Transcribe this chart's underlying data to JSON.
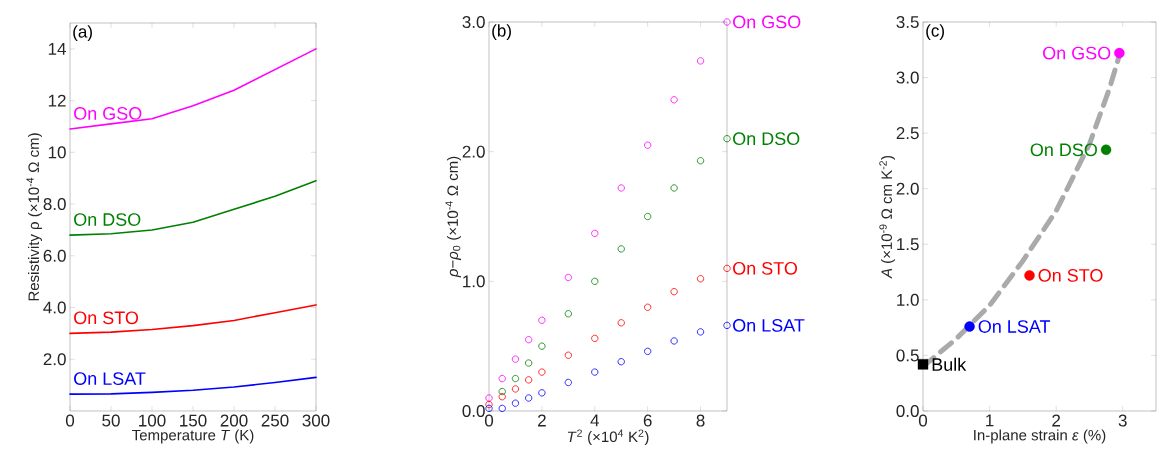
{
  "chart_data": [
    {
      "type": "line",
      "xlabel": "Temperature *T* (K)",
      "ylabel": "Resistivity ρ (×10$^{-4}$ Ω cm)",
      "annotations": [
        "(a)"
      ],
      "x": [
        0,
        50,
        100,
        150,
        200,
        250,
        300
      ],
      "series": [
        {
          "name": "On GSO",
          "color": "#ff00ff",
          "values": [
            10.9,
            11.1,
            11.3,
            11.8,
            12.4,
            13.2,
            14.0
          ]
        },
        {
          "name": "On DSO",
          "color": "#008000",
          "values": [
            6.8,
            6.85,
            7.0,
            7.3,
            7.8,
            8.3,
            8.9
          ]
        },
        {
          "name": "On STO",
          "color": "#ff0000",
          "values": [
            3.0,
            3.05,
            3.15,
            3.3,
            3.5,
            3.8,
            4.1
          ]
        },
        {
          "name": "On LSAT",
          "color": "#0000ff",
          "values": [
            0.65,
            0.66,
            0.72,
            0.8,
            0.93,
            1.1,
            1.3
          ]
        }
      ],
      "xlim": [
        0,
        300
      ],
      "xticks": [
        0,
        50,
        100,
        150,
        200,
        250,
        300
      ],
      "ylim": [
        0,
        15
      ],
      "yticks": [
        {
          "value": 2,
          "label": "2.0"
        },
        {
          "value": 4,
          "label": "4.0"
        },
        {
          "value": 6,
          "label": "6.0"
        },
        {
          "value": 8,
          "label": "8.0"
        },
        10,
        12,
        14
      ]
    },
    {
      "type": "scatter",
      "xlabel": "*T*$^{2}$ (×10$^{4}$ K$^{2}$)",
      "ylabel": "*ρ*−*ρ*$_{0}$ (×10$^{-4}$ Ω cm)",
      "annotations": [
        "(b)"
      ],
      "marker": "circle",
      "x": [
        0,
        0.5,
        1,
        1.5,
        2,
        3,
        4,
        5,
        6,
        7,
        8,
        9
      ],
      "series": [
        {
          "name": "On GSO",
          "color": "#ff00ff",
          "values": [
            0.1,
            0.25,
            0.4,
            0.55,
            0.7,
            1.03,
            1.37,
            1.72,
            2.05,
            2.4,
            2.7,
            3.0
          ]
        },
        {
          "name": "On DSO",
          "color": "#008000",
          "values": [
            null,
            0.15,
            0.25,
            0.37,
            0.5,
            0.75,
            1.0,
            1.25,
            1.5,
            1.72,
            1.93,
            2.1
          ]
        },
        {
          "name": "On STO",
          "color": "#ff0000",
          "values": [
            0.05,
            0.11,
            0.17,
            0.24,
            0.3,
            0.43,
            0.56,
            0.68,
            0.8,
            0.92,
            1.02,
            1.1
          ]
        },
        {
          "name": "On LSAT",
          "color": "#0000ff",
          "values": [
            0.02,
            0.02,
            0.06,
            0.1,
            0.14,
            0.22,
            0.3,
            0.38,
            0.46,
            0.54,
            0.61,
            0.66
          ]
        }
      ],
      "xlim": [
        0,
        9
      ],
      "xticks": [
        0,
        2,
        4,
        6,
        8
      ],
      "ylim": [
        0,
        3
      ],
      "yticks": [
        {
          "value": 0,
          "label": "0.0"
        },
        {
          "value": 1,
          "label": "1.0"
        },
        {
          "value": 2,
          "label": "2.0"
        },
        {
          "value": 3,
          "label": "3.0"
        }
      ]
    },
    {
      "type": "scatter",
      "xlabel": "In-plane strain *ε* (%)",
      "ylabel": "*A* (×10$^{-9}$ Ω cm K$^{-2}$)",
      "annotations": [
        "(c)"
      ],
      "series": [
        {
          "type": "line",
          "color": "#aaaaaa",
          "line_style": "dashed",
          "marker": "none",
          "x": [
            0,
            0.5,
            1,
            1.5,
            2,
            2.5,
            2.8,
            2.95
          ],
          "values": [
            0.4,
            0.65,
            0.95,
            1.35,
            1.8,
            2.4,
            2.9,
            3.2
          ]
        },
        {
          "name": "Bulk",
          "color": "#000000",
          "marker": "square",
          "x": [
            0
          ],
          "values": [
            0.42
          ]
        },
        {
          "name": "On LSAT",
          "color": "#0000ff",
          "marker": "circle",
          "x": [
            0.7
          ],
          "values": [
            0.76
          ]
        },
        {
          "name": "On STO",
          "color": "#ff0000",
          "marker": "circle",
          "x": [
            1.6
          ],
          "values": [
            1.22
          ]
        },
        {
          "name": "On DSO",
          "color": "#008000",
          "marker": "circle",
          "x": [
            2.75
          ],
          "values": [
            2.35
          ]
        },
        {
          "name": "On GSO",
          "color": "#ff00ff",
          "marker": "circle",
          "x": [
            2.95
          ],
          "values": [
            3.22
          ]
        }
      ],
      "xlim": [
        0,
        3.5
      ],
      "xticks": [
        0,
        1,
        2,
        3
      ],
      "ylim": [
        0,
        3.5
      ],
      "yticks": [
        {
          "value": 0,
          "label": "0.0"
        },
        {
          "value": 0.5,
          "label": "0.5"
        },
        {
          "value": 1,
          "label": "1.0"
        },
        {
          "value": 1.5,
          "label": "1.5"
        },
        {
          "value": 2,
          "label": "2.0"
        },
        {
          "value": 2.5,
          "label": "2.5"
        },
        {
          "value": 3,
          "label": "3.0"
        },
        {
          "value": 3.5,
          "label": "3.5"
        }
      ]
    }
  ]
}
